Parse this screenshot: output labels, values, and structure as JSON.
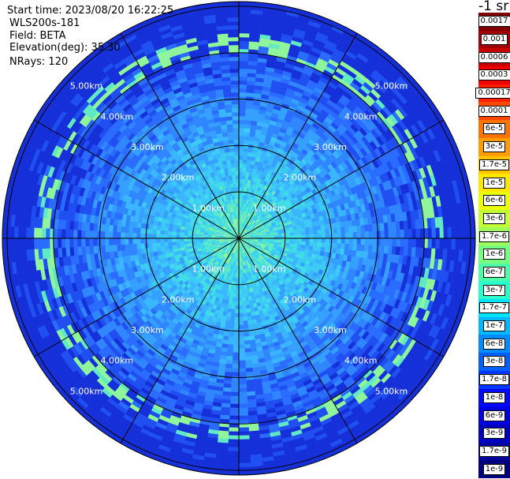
{
  "info": {
    "start_time": "Start time: 2023/08/20 16:22:25",
    "site": "WLS200s-181",
    "field": "Field: BETA",
    "elevation": "Elevation(deg): 35.30",
    "nrays": "NRays: 120"
  },
  "colorbar": {
    "unit_label": "-1 sr",
    "entries": [
      {
        "label": "0.0017",
        "color": "#7f0000"
      },
      {
        "label": "0.001",
        "color": "#a30000"
      },
      {
        "label": "0.0006",
        "color": "#c80000"
      },
      {
        "label": "0.0003",
        "color": "#ee0000"
      },
      {
        "label": "0.00017",
        "color": "#ff1d00"
      },
      {
        "label": "0.0001",
        "color": "#ff4800"
      },
      {
        "label": "6e-5",
        "color": "#ff7300"
      },
      {
        "label": "3e-5",
        "color": "#ff9c00"
      },
      {
        "label": "1.7e-5",
        "color": "#ffc400"
      },
      {
        "label": "1e-5",
        "color": "#ffe800"
      },
      {
        "label": "6e-6",
        "color": "#eaff0c"
      },
      {
        "label": "3e-6",
        "color": "#c3ff33"
      },
      {
        "label": "1.7e-6",
        "color": "#9cff5a"
      },
      {
        "label": "1e-6",
        "color": "#76ff80"
      },
      {
        "label": "6e-7",
        "color": "#4effa8"
      },
      {
        "label": "3e-7",
        "color": "#2affcc"
      },
      {
        "label": "1.7e-7",
        "color": "#00e4f8"
      },
      {
        "label": "1e-7",
        "color": "#00b8ff"
      },
      {
        "label": "6e-8",
        "color": "#008cff"
      },
      {
        "label": "3e-8",
        "color": "#0060ff"
      },
      {
        "label": "1.7e-8",
        "color": "#0034ff"
      },
      {
        "label": "1e-8",
        "color": "#0008ff"
      },
      {
        "label": "6e-9",
        "color": "#0000e2"
      },
      {
        "label": "3e-9",
        "color": "#0000c0"
      },
      {
        "label": "1.7e-9",
        "color": "#00009e"
      },
      {
        "label": "1e-9",
        "color": "#00007f"
      }
    ]
  },
  "range_labels": [
    "1.00km",
    "2.00km",
    "3.00km",
    "4.00km",
    "5.00km"
  ],
  "ppi": {
    "spokes": 12,
    "rings": 5
  }
}
